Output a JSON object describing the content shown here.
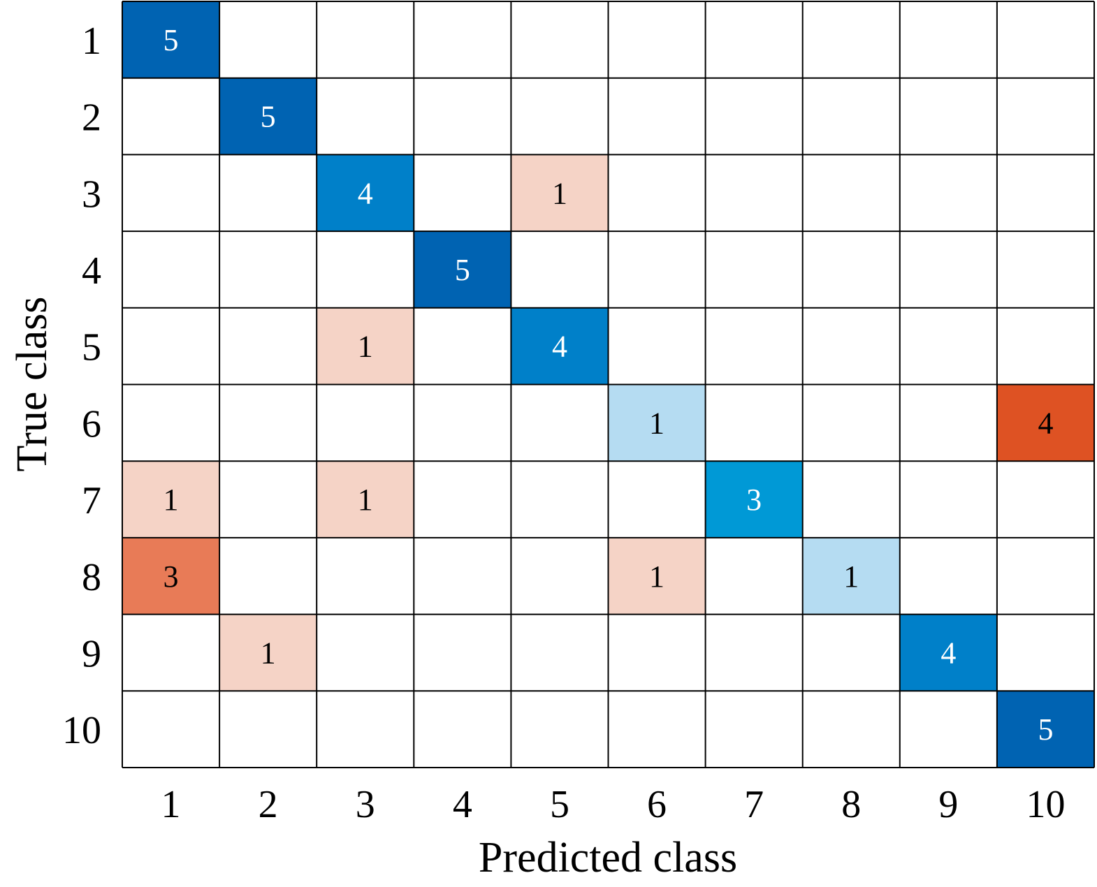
{
  "chart_data": {
    "type": "heatmap",
    "title": "",
    "xlabel": "Predicted class",
    "ylabel": "True class",
    "row_labels": [
      "1",
      "2",
      "3",
      "4",
      "5",
      "6",
      "7",
      "8",
      "9",
      "10"
    ],
    "col_labels": [
      "1",
      "2",
      "3",
      "4",
      "5",
      "6",
      "7",
      "8",
      "9",
      "10"
    ],
    "values": [
      [
        5,
        0,
        0,
        0,
        0,
        0,
        0,
        0,
        0,
        0
      ],
      [
        0,
        5,
        0,
        0,
        0,
        0,
        0,
        0,
        0,
        0
      ],
      [
        0,
        0,
        4,
        0,
        1,
        0,
        0,
        0,
        0,
        0
      ],
      [
        0,
        0,
        0,
        5,
        0,
        0,
        0,
        0,
        0,
        0
      ],
      [
        0,
        0,
        1,
        0,
        4,
        0,
        0,
        0,
        0,
        0
      ],
      [
        0,
        0,
        0,
        0,
        0,
        1,
        0,
        0,
        0,
        4
      ],
      [
        1,
        0,
        1,
        0,
        0,
        0,
        3,
        0,
        0,
        0
      ],
      [
        3,
        0,
        0,
        0,
        0,
        1,
        0,
        1,
        0,
        0
      ],
      [
        0,
        1,
        0,
        0,
        0,
        0,
        0,
        0,
        4,
        0
      ],
      [
        0,
        0,
        0,
        0,
        0,
        0,
        0,
        0,
        0,
        5
      ]
    ],
    "hide_zero_values": true,
    "grid": true,
    "colors": {
      "diagonal": {
        "1": "#b5dcf2",
        "3": "#0099d6",
        "4": "#0080c9",
        "5": "#0063b2"
      },
      "off_diagonal": {
        "1": "#f5d3c6",
        "3": "#e87b57",
        "4": "#de5223"
      },
      "empty": "#ffffff",
      "grid_line": "#000000",
      "text_on_dark": "#ffffff",
      "text_on_light": "#000000"
    }
  }
}
